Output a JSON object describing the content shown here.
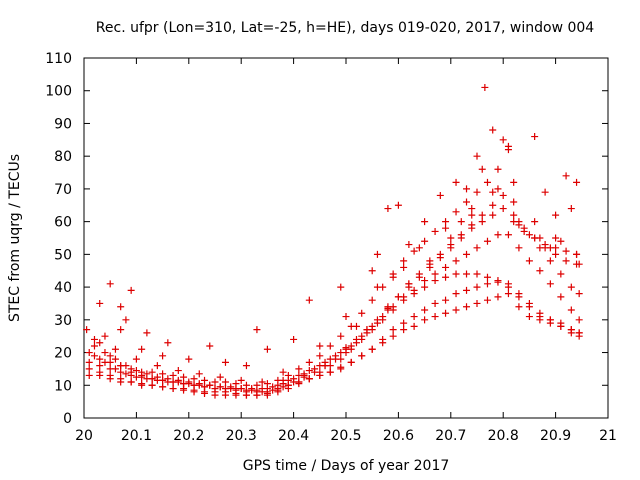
{
  "chart_data": {
    "type": "scatter",
    "title": "Rec. ufpr (Lon=310, Lat=-25, h=HE), days 019-020, 2017, window 004",
    "xlabel": "GPS time / Days of year 2017",
    "ylabel": "STEC from uqrg / TECUs",
    "xlim": [
      20,
      21
    ],
    "ylim": [
      0,
      110
    ],
    "xticks": [
      "20",
      "20.1",
      "20.2",
      "20.3",
      "20.4",
      "20.5",
      "20.6",
      "20.7",
      "20.8",
      "20.9",
      "21"
    ],
    "yticks": [
      "0",
      "10",
      "20",
      "30",
      "40",
      "50",
      "60",
      "70",
      "80",
      "90",
      "100",
      "110"
    ],
    "grid": false,
    "marker": "plus",
    "color": "#dd0000",
    "series": [
      {
        "x": [
          20.01,
          20.03,
          20.05,
          20.07,
          20.09,
          20.11,
          20.13,
          20.15,
          20.17,
          20.19,
          20.21,
          20.23,
          20.25,
          20.27,
          20.29,
          20.31,
          20.33,
          20.35,
          20.37,
          20.39,
          20.41,
          20.43,
          20.45,
          20.47,
          20.49,
          20.51,
          20.53,
          20.55,
          20.57,
          20.59,
          20.61,
          20.63,
          20.65,
          20.67,
          20.69,
          20.71,
          20.73,
          20.75,
          20.77,
          20.79,
          20.81,
          20.83,
          20.85,
          20.87,
          20.89,
          20.91,
          20.93,
          20.945
        ],
        "y": [
          15,
          14,
          13,
          12,
          11,
          10.5,
          10,
          9.5,
          9,
          8.5,
          8,
          7.5,
          7,
          7,
          7,
          7,
          7,
          7.5,
          8.5,
          10,
          11,
          12,
          13,
          14,
          15,
          17,
          19,
          21,
          24,
          27,
          29,
          31,
          33,
          35,
          36,
          38,
          39,
          40,
          41,
          41.5,
          41,
          38,
          35,
          32,
          30,
          28,
          26,
          25
        ]
      },
      {
        "x": [
          20.01,
          20.03,
          20.05,
          20.07,
          20.09,
          20.11,
          20.13,
          20.15,
          20.17,
          20.19,
          20.21,
          20.23,
          20.25,
          20.27,
          20.29,
          20.31,
          20.33,
          20.35,
          20.37,
          20.39,
          20.41,
          20.43,
          20.45,
          20.47,
          20.49,
          20.51,
          20.53,
          20.55,
          20.57,
          20.59,
          20.61,
          20.63,
          20.65,
          20.67,
          20.69,
          20.71,
          20.73,
          20.75,
          20.77,
          20.79,
          20.81,
          20.83,
          20.85,
          20.87,
          20.89,
          20.91,
          20.93,
          20.945
        ],
        "y": [
          17,
          16,
          15,
          14,
          13,
          12.5,
          12,
          11.5,
          11,
          10.5,
          10,
          9.5,
          9,
          9,
          9,
          8.5,
          8.5,
          9,
          10,
          11.5,
          13,
          14.5,
          16,
          18,
          20,
          22,
          25,
          28,
          31,
          34,
          37,
          39,
          42,
          44,
          46,
          48,
          50,
          52,
          54,
          56,
          56,
          52,
          48,
          45,
          41,
          37,
          33,
          30
        ]
      },
      {
        "x": [
          20.01,
          20.03,
          20.05,
          20.07,
          20.09,
          20.11,
          20.13,
          20.15,
          20.17,
          20.19,
          20.21,
          20.23,
          20.25,
          20.27,
          20.29,
          20.31,
          20.33,
          20.35,
          20.37,
          20.39,
          20.41,
          20.43,
          20.45,
          20.47,
          20.49,
          20.51,
          20.53,
          20.55,
          20.57,
          20.59,
          20.61,
          20.63,
          20.65,
          20.67,
          20.69,
          20.71,
          20.73,
          20.75,
          20.77,
          20.79,
          20.81,
          20.83,
          20.85,
          20.87,
          20.89,
          20.91,
          20.93,
          20.945
        ],
        "y": [
          20,
          18,
          17,
          16,
          15,
          14,
          14,
          13.5,
          13,
          12.5,
          12,
          11.5,
          11,
          11,
          10.5,
          10,
          10,
          10.5,
          11.5,
          13,
          15,
          17,
          19,
          22,
          25,
          28,
          32,
          36,
          40,
          44,
          48,
          51,
          54,
          57,
          60,
          63,
          66,
          69,
          72,
          76,
          82,
          60,
          56,
          52,
          48,
          44,
          40,
          38
        ]
      },
      {
        "x": [
          20.01,
          20.03,
          20.05,
          20.07,
          20.09,
          20.11,
          20.13,
          20.15,
          20.17,
          20.19,
          20.21,
          20.23,
          20.25,
          20.27,
          20.29,
          20.31,
          20.33,
          20.35,
          20.37,
          20.39,
          20.41,
          20.43,
          20.45,
          20.47,
          20.49,
          20.51,
          20.53,
          20.55,
          20.57,
          20.59,
          20.61,
          20.63,
          20.65,
          20.67,
          20.69,
          20.71,
          20.73,
          20.75,
          20.77,
          20.79,
          20.81,
          20.83,
          20.85,
          20.87,
          20.89,
          20.91,
          20.93,
          20.945
        ],
        "y": [
          13,
          13,
          12,
          11,
          11,
          10,
          10,
          9.5,
          9,
          9,
          8.5,
          8,
          8,
          8,
          7.5,
          7,
          7,
          7,
          8,
          9,
          10.5,
          12,
          14,
          16,
          18,
          21,
          24,
          27,
          30,
          33,
          36,
          38,
          40,
          42,
          43,
          44,
          44,
          44,
          43,
          42,
          40,
          37,
          34,
          31,
          30,
          29,
          27,
          26
        ]
      },
      {
        "x": [
          20.005,
          20.03,
          20.05,
          20.07,
          20.09,
          20.11,
          20.13,
          20.15,
          20.17,
          20.19,
          20.21,
          20.23,
          20.25,
          20.27,
          20.29,
          20.31,
          20.33,
          20.35,
          20.37,
          20.39,
          20.41,
          20.43,
          20.45,
          20.47,
          20.49,
          20.51,
          20.53,
          20.55,
          20.57,
          20.59,
          20.61,
          20.63,
          20.65,
          20.67,
          20.69,
          20.71,
          20.73,
          20.75,
          20.77,
          20.79,
          20.81,
          20.83,
          20.85,
          20.87,
          20.89,
          20.91,
          20.93,
          20.945
        ],
        "y": [
          27,
          23,
          19,
          16,
          14,
          13,
          12,
          11.5,
          11,
          10.5,
          10,
          9.5,
          9,
          9,
          8.5,
          8,
          8,
          8,
          9,
          10,
          11,
          12,
          13,
          14,
          15.5,
          17,
          19,
          21,
          23,
          25,
          27,
          28,
          30,
          31,
          32,
          33,
          34,
          35,
          36,
          37,
          38,
          34,
          31,
          30,
          29,
          28,
          27,
          26
        ]
      },
      {
        "x": [
          20.02,
          20.04,
          20.06,
          20.08,
          20.1,
          20.12,
          20.14,
          20.16,
          20.18,
          20.2,
          20.22,
          20.24,
          20.26,
          20.28,
          20.3,
          20.32,
          20.34,
          20.36,
          20.38,
          20.4,
          20.42,
          20.44,
          20.46,
          20.48,
          20.5,
          20.52,
          20.54,
          20.56,
          20.58,
          20.6,
          20.62,
          20.64,
          20.66,
          20.68,
          20.7,
          20.72,
          20.74,
          20.76,
          20.78,
          20.8,
          20.82,
          20.84,
          20.86,
          20.88,
          20.9,
          20.92,
          20.94
        ],
        "y": [
          22,
          20,
          18,
          16,
          14.5,
          13.5,
          12.5,
          12,
          11.5,
          11,
          10.5,
          10,
          9.5,
          9,
          9,
          8.5,
          8,
          8.5,
          9.5,
          11,
          12.5,
          14,
          16,
          18,
          20,
          23,
          26,
          29,
          33,
          37,
          41,
          44,
          47,
          50,
          53,
          56,
          59,
          62,
          65,
          68,
          62,
          58,
          55,
          52,
          50,
          48,
          47
        ]
      },
      {
        "x": [
          20.02,
          20.04,
          20.06,
          20.08,
          20.1,
          20.12,
          20.14,
          20.16,
          20.18,
          20.2,
          20.22,
          20.24,
          20.26,
          20.28,
          20.3,
          20.32,
          20.34,
          20.36,
          20.38,
          20.4,
          20.42,
          20.44,
          20.46,
          20.48,
          20.5,
          20.52,
          20.54,
          20.56,
          20.58,
          20.6,
          20.62,
          20.64,
          20.66,
          20.68,
          20.7,
          20.72,
          20.74,
          20.76,
          20.78,
          20.8,
          20.82,
          20.84,
          20.86,
          20.88,
          20.9,
          20.92,
          20.94
        ],
        "y": [
          19,
          17,
          15,
          13.5,
          12.5,
          12,
          11.5,
          11,
          11,
          10.5,
          10,
          10,
          9.5,
          9.5,
          9,
          9,
          9,
          9.5,
          10.5,
          12,
          13.5,
          15,
          17,
          19,
          21.5,
          24,
          27,
          30,
          33.5,
          37,
          40,
          43,
          46,
          49,
          52,
          55,
          58,
          60,
          62,
          64,
          60,
          57,
          55,
          53,
          52,
          51,
          50
        ]
      },
      {
        "x": [
          20.02,
          20.06,
          20.1,
          20.14,
          20.18,
          20.22,
          20.26,
          20.3,
          20.34,
          20.38,
          20.42,
          20.46,
          20.5,
          20.54,
          20.58,
          20.62,
          20.66,
          20.7,
          20.74,
          20.78,
          20.82,
          20.86,
          20.9,
          20.94
        ],
        "y": [
          24,
          21,
          18,
          16,
          14.5,
          13.5,
          12.5,
          11.5,
          11,
          11.5,
          13,
          16,
          21,
          27,
          34,
          41,
          48,
          55,
          62,
          69,
          66,
          60,
          55,
          50
        ]
      },
      {
        "x": [
          20.03,
          20.05,
          20.07,
          20.09,
          20.12,
          20.16,
          20.24,
          20.33,
          20.35,
          20.43,
          20.49,
          20.56,
          20.58,
          20.6,
          20.65,
          20.68,
          20.71,
          20.73,
          20.75,
          20.765,
          20.78,
          20.8,
          20.81,
          20.82,
          20.86,
          20.88,
          20.9,
          20.92,
          20.94,
          20.945,
          20.4,
          20.55,
          20.62
        ],
        "y": [
          35,
          41,
          27,
          39,
          26,
          23,
          22,
          27,
          21,
          36,
          40,
          50,
          64,
          65,
          60,
          68,
          72,
          70,
          80,
          101,
          88,
          85,
          83,
          72,
          86,
          69,
          62,
          74,
          72,
          47,
          24,
          45,
          53
        ]
      },
      {
        "x": [
          20.04,
          20.07,
          20.08,
          20.11,
          20.15,
          20.2,
          20.27,
          20.31,
          20.38,
          20.45,
          20.5,
          20.52,
          20.56,
          20.59,
          20.61,
          20.64,
          20.69,
          20.72,
          20.74,
          20.76,
          20.79,
          20.83,
          20.87,
          20.89,
          20.91,
          20.93
        ],
        "y": [
          25,
          34,
          30,
          21,
          19,
          18,
          17,
          16,
          14,
          22,
          31,
          28,
          40,
          43,
          46,
          52,
          58,
          60,
          64,
          76,
          70,
          59,
          55,
          52,
          54,
          64
        ]
      }
    ]
  }
}
